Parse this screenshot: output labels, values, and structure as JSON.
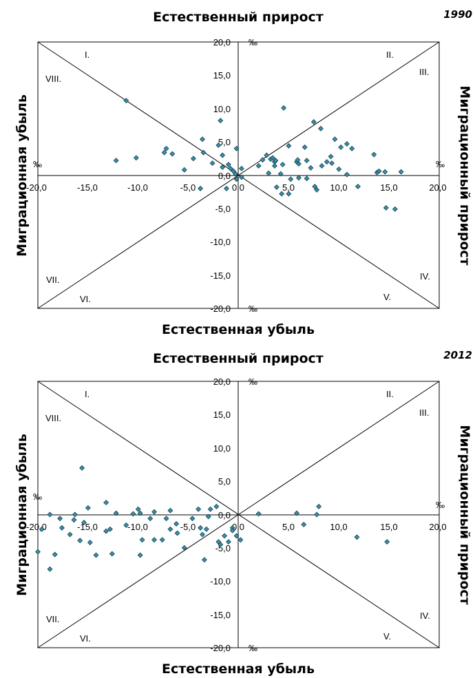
{
  "axis_titles": {
    "top": "Естественный прирост",
    "bottom": "Естественная убыль",
    "left": "Миграционная убыль",
    "right": "Миграционный прирост"
  },
  "unit_label": "‰",
  "sector_labels": [
    "I.",
    "II.",
    "III.",
    "IV.",
    "V.",
    "VI.",
    "VII.",
    "VIII."
  ],
  "colors": {
    "marker_fill": "#3b8fa8",
    "marker_stroke": "#0f3f4e",
    "lines": "#000000"
  },
  "chart_data": [
    {
      "type": "scatter",
      "title": "1990",
      "xlim": [
        -20,
        20
      ],
      "ylim": [
        -20,
        20
      ],
      "x_ticks": [
        "-20,0",
        "-15,0",
        "-10,0",
        "-5,0",
        "0,0",
        "5,0",
        "10,0",
        "15,0",
        "20,0"
      ],
      "y_ticks": [
        "20,0",
        "15,0",
        "10,0",
        "5,0",
        "0,0",
        "-5,0",
        "-10,0",
        "-15,0",
        "-20,0"
      ],
      "points": [
        [
          -11.2,
          11.2
        ],
        [
          -12.2,
          2.2
        ],
        [
          -10.2,
          2.6
        ],
        [
          -7.4,
          3.4
        ],
        [
          -7.2,
          4.0
        ],
        [
          -6.6,
          3.2
        ],
        [
          -5.4,
          0.8
        ],
        [
          -4.5,
          2.5
        ],
        [
          -3.6,
          5.4
        ],
        [
          -3.5,
          3.4
        ],
        [
          -3.8,
          -2.0
        ],
        [
          -2.6,
          1.8
        ],
        [
          -2.0,
          4.5
        ],
        [
          -1.8,
          8.2
        ],
        [
          -1.6,
          3.0
        ],
        [
          -1.6,
          1.2
        ],
        [
          -1.2,
          -2.0
        ],
        [
          -1.0,
          1.6
        ],
        [
          -0.8,
          1.0
        ],
        [
          -0.5,
          0.6
        ],
        [
          -0.3,
          0.2
        ],
        [
          -0.2,
          4.0
        ],
        [
          0.3,
          1.0
        ],
        [
          -0.2,
          -0.6
        ],
        [
          0.3,
          -0.3
        ],
        [
          2.0,
          1.4
        ],
        [
          2.4,
          2.3
        ],
        [
          2.8,
          3.0
        ],
        [
          3.0,
          0.3
        ],
        [
          3.2,
          2.4
        ],
        [
          3.4,
          2.6
        ],
        [
          3.6,
          1.4
        ],
        [
          3.8,
          -1.8
        ],
        [
          3.6,
          2.0
        ],
        [
          3.7,
          2.2
        ],
        [
          4.2,
          0.2
        ],
        [
          4.4,
          1.6
        ],
        [
          4.5,
          10.1
        ],
        [
          4.3,
          -2.8
        ],
        [
          5.0,
          -2.8
        ],
        [
          5.0,
          4.4
        ],
        [
          5.2,
          -0.6
        ],
        [
          5.8,
          2.0
        ],
        [
          5.9,
          2.3
        ],
        [
          6.0,
          1.7
        ],
        [
          6.0,
          -0.4
        ],
        [
          6.6,
          4.2
        ],
        [
          6.8,
          2.2
        ],
        [
          6.8,
          -0.5
        ],
        [
          7.2,
          1.1
        ],
        [
          7.5,
          8.0
        ],
        [
          7.6,
          -1.7
        ],
        [
          7.8,
          -2.2
        ],
        [
          8.2,
          7.0
        ],
        [
          8.3,
          1.4
        ],
        [
          8.8,
          2.0
        ],
        [
          9.2,
          2.8
        ],
        [
          9.3,
          1.8
        ],
        [
          9.6,
          5.4
        ],
        [
          10.0,
          0.9
        ],
        [
          10.2,
          4.2
        ],
        [
          10.8,
          4.7
        ],
        [
          11.3,
          4.0
        ],
        [
          11.9,
          -1.7
        ],
        [
          10.8,
          0.1
        ],
        [
          13.5,
          3.1
        ],
        [
          13.8,
          0.4
        ],
        [
          14.0,
          0.6
        ],
        [
          14.6,
          0.5
        ],
        [
          14.7,
          -4.9
        ],
        [
          15.6,
          -5.1
        ],
        [
          16.2,
          0.5
        ]
      ]
    },
    {
      "type": "scatter",
      "title": "2012",
      "xlim": [
        -20,
        20
      ],
      "ylim": [
        -20,
        20
      ],
      "x_ticks": [
        "-20,0",
        "-15,0",
        "-10,0",
        "-5,0",
        "0,0",
        "5,0",
        "10,0",
        "15,0",
        "20,0"
      ],
      "y_ticks": [
        "20,0",
        "15,0",
        "10,0",
        "5,0",
        "0,0",
        "-5,0",
        "-10,0",
        "-15,0",
        "-20,0"
      ],
      "points": [
        [
          -20.0,
          -5.6
        ],
        [
          -19.6,
          -2.2
        ],
        [
          -18.8,
          -8.2
        ],
        [
          -18.8,
          0.0
        ],
        [
          -18.3,
          -6.0
        ],
        [
          -17.8,
          -0.6
        ],
        [
          -17.6,
          -2.0
        ],
        [
          -16.8,
          -3.0
        ],
        [
          -16.4,
          -0.8
        ],
        [
          -16.3,
          0.0
        ],
        [
          -15.6,
          7.0
        ],
        [
          -15.8,
          -3.9
        ],
        [
          -15.4,
          -1.2
        ],
        [
          -15.0,
          1.0
        ],
        [
          -14.8,
          -4.2
        ],
        [
          -14.2,
          -6.1
        ],
        [
          -13.2,
          -2.5
        ],
        [
          -13.2,
          1.8
        ],
        [
          -12.8,
          -2.2
        ],
        [
          -12.6,
          -5.9
        ],
        [
          -12.2,
          0.2
        ],
        [
          -11.2,
          -1.6
        ],
        [
          -10.5,
          0.1
        ],
        [
          -9.8,
          0.2
        ],
        [
          -10.0,
          0.8
        ],
        [
          -9.8,
          -6.1
        ],
        [
          -9.6,
          -3.8
        ],
        [
          -8.8,
          -0.6
        ],
        [
          -8.4,
          -3.8
        ],
        [
          -8.4,
          0.4
        ],
        [
          -7.6,
          -3.8
        ],
        [
          -7.2,
          -0.6
        ],
        [
          -6.8,
          -2.2
        ],
        [
          -6.8,
          0.6
        ],
        [
          -6.2,
          -1.4
        ],
        [
          -6.1,
          -2.8
        ],
        [
          -5.4,
          -5.0
        ],
        [
          -4.6,
          -0.6
        ],
        [
          -4.0,
          0.8
        ],
        [
          -3.8,
          -2.0
        ],
        [
          -3.6,
          -3.0
        ],
        [
          -3.4,
          -6.8
        ],
        [
          -3.2,
          -2.2
        ],
        [
          -3.0,
          -0.3
        ],
        [
          -2.8,
          0.8
        ],
        [
          -2.2,
          1.2
        ],
        [
          -2.0,
          -4.1
        ],
        [
          -1.8,
          -4.5
        ],
        [
          -1.4,
          -3.2
        ],
        [
          -1.0,
          -4.1
        ],
        [
          -0.6,
          -2.0
        ],
        [
          -0.6,
          -2.4
        ],
        [
          -0.2,
          -3.2
        ],
        [
          0.2,
          -3.8
        ],
        [
          2.0,
          0.1
        ],
        [
          5.8,
          0.2
        ],
        [
          6.5,
          -1.5
        ],
        [
          7.8,
          0.0
        ],
        [
          8.0,
          1.2
        ],
        [
          11.8,
          -3.4
        ],
        [
          14.8,
          -4.1
        ]
      ]
    }
  ]
}
